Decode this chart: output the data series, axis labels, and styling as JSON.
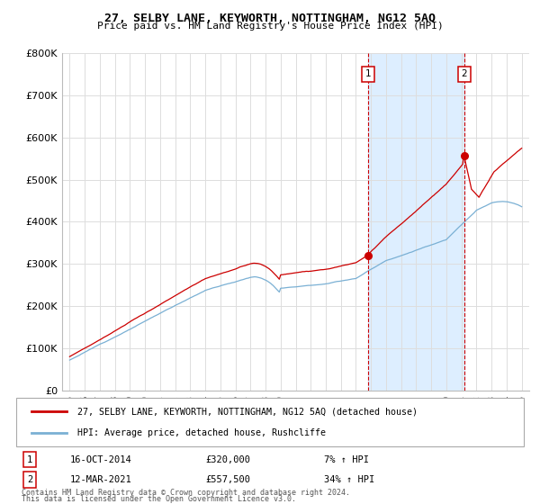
{
  "title": "27, SELBY LANE, KEYWORTH, NOTTINGHAM, NG12 5AQ",
  "subtitle": "Price paid vs. HM Land Registry's House Price Index (HPI)",
  "ylabel_ticks": [
    "£0",
    "£100K",
    "£200K",
    "£300K",
    "£400K",
    "£500K",
    "£600K",
    "£700K",
    "£800K"
  ],
  "ytick_values": [
    0,
    100000,
    200000,
    300000,
    400000,
    500000,
    600000,
    700000,
    800000
  ],
  "ylim": [
    0,
    800000
  ],
  "xlim_start": 1994.5,
  "xlim_end": 2025.5,
  "xtick_labels": [
    "95",
    "96",
    "97",
    "98",
    "99",
    "00",
    "01",
    "02",
    "03",
    "04",
    "05",
    "06",
    "07",
    "08",
    "09",
    "10",
    "11",
    "12",
    "13",
    "14",
    "15",
    "16",
    "17",
    "18",
    "19",
    "20",
    "21",
    "22",
    "23",
    "24",
    "25"
  ],
  "xtick_values": [
    1995,
    1996,
    1997,
    1998,
    1999,
    2000,
    2001,
    2002,
    2003,
    2004,
    2005,
    2006,
    2007,
    2008,
    2009,
    2010,
    2011,
    2012,
    2013,
    2014,
    2015,
    2016,
    2017,
    2018,
    2019,
    2020,
    2021,
    2022,
    2023,
    2024,
    2025
  ],
  "legend_line1": "27, SELBY LANE, KEYWORTH, NOTTINGHAM, NG12 5AQ (detached house)",
  "legend_line2": "HPI: Average price, detached house, Rushcliffe",
  "marker1_label": "1",
  "marker1_date": "16-OCT-2014",
  "marker1_price": "£320,000",
  "marker1_pct": "7% ↑ HPI",
  "marker1_x": 2014.79,
  "marker1_y": 320000,
  "marker2_label": "2",
  "marker2_date": "12-MAR-2021",
  "marker2_price": "£557,500",
  "marker2_pct": "34% ↑ HPI",
  "marker2_x": 2021.19,
  "marker2_y": 557500,
  "red_color": "#cc0000",
  "blue_color": "#7ab0d4",
  "shade_color": "#ddeeff",
  "grid_color": "#dddddd",
  "footnote1": "Contains HM Land Registry data © Crown copyright and database right 2024.",
  "footnote2": "This data is licensed under the Open Government Licence v3.0."
}
